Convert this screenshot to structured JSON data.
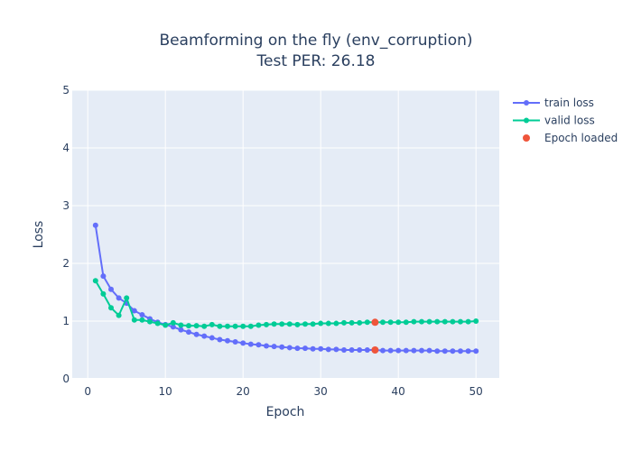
{
  "chart_data": {
    "type": "line",
    "title_line1": "Beamforming on the fly (env_corruption)",
    "title_line2": "Test PER: 26.18",
    "xlabel": "Epoch",
    "ylabel": "Loss",
    "xlim": [
      -2,
      53
    ],
    "ylim": [
      0,
      5
    ],
    "x_ticks": [
      0,
      10,
      20,
      30,
      40,
      50
    ],
    "y_ticks": [
      0,
      1,
      2,
      3,
      4,
      5
    ],
    "grid": true,
    "legend_position": "top-right",
    "x": [
      1,
      2,
      3,
      4,
      5,
      6,
      7,
      8,
      9,
      10,
      11,
      12,
      13,
      14,
      15,
      16,
      17,
      18,
      19,
      20,
      21,
      22,
      23,
      24,
      25,
      26,
      27,
      28,
      29,
      30,
      31,
      32,
      33,
      34,
      35,
      36,
      37,
      38,
      39,
      40,
      41,
      42,
      43,
      44,
      45,
      46,
      47,
      48,
      49,
      50
    ],
    "series": [
      {
        "name": "train loss",
        "color": "#636efa",
        "values": [
          2.66,
          1.78,
          1.55,
          1.4,
          1.31,
          1.18,
          1.11,
          1.04,
          0.98,
          0.94,
          0.9,
          0.85,
          0.81,
          0.77,
          0.74,
          0.71,
          0.68,
          0.66,
          0.64,
          0.62,
          0.6,
          0.59,
          0.57,
          0.56,
          0.55,
          0.54,
          0.53,
          0.53,
          0.52,
          0.52,
          0.51,
          0.51,
          0.5,
          0.5,
          0.5,
          0.5,
          0.5,
          0.49,
          0.49,
          0.49,
          0.49,
          0.49,
          0.49,
          0.49,
          0.48,
          0.48,
          0.48,
          0.48,
          0.48,
          0.48
        ]
      },
      {
        "name": "valid loss",
        "color": "#00cc96",
        "values": [
          1.7,
          1.47,
          1.23,
          1.1,
          1.4,
          1.02,
          1.02,
          0.99,
          0.96,
          0.93,
          0.97,
          0.93,
          0.92,
          0.92,
          0.91,
          0.94,
          0.91,
          0.91,
          0.91,
          0.91,
          0.91,
          0.93,
          0.94,
          0.95,
          0.95,
          0.95,
          0.94,
          0.95,
          0.95,
          0.96,
          0.96,
          0.96,
          0.97,
          0.97,
          0.97,
          0.98,
          0.98,
          0.98,
          0.98,
          0.98,
          0.98,
          0.99,
          0.99,
          0.99,
          0.99,
          0.99,
          0.99,
          0.99,
          0.99,
          1.0
        ]
      }
    ],
    "epoch_loaded": {
      "name": "Epoch loaded",
      "color": "#ef553b",
      "points": [
        {
          "x": 37,
          "y": 0.98
        },
        {
          "x": 37,
          "y": 0.5
        }
      ]
    }
  }
}
